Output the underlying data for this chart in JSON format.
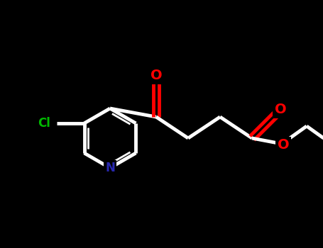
{
  "background_color": "#000000",
  "bond_color": "#ffffff",
  "atom_colors": {
    "O": "#ff0000",
    "N": "#2828b0",
    "Cl": "#00bb00",
    "C": "#ffffff"
  },
  "fig_width": 4.55,
  "fig_height": 3.5,
  "dpi": 100,
  "lw": 3.5,
  "lw_inner": 2.0
}
